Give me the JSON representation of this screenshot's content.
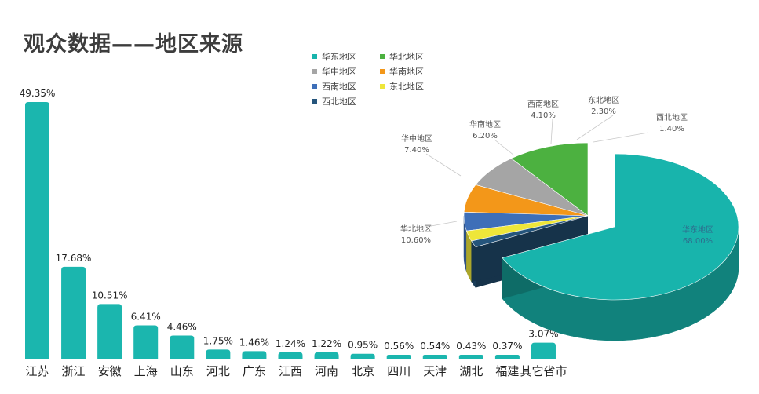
{
  "title": "观众数据——地区来源",
  "chart_data": [
    {
      "type": "bar",
      "categories": [
        "江苏",
        "浙江",
        "安徽",
        "上海",
        "山东",
        "河北",
        "广东",
        "江西",
        "河南",
        "北京",
        "四川",
        "天津",
        "湖北",
        "福建",
        "其它省市"
      ],
      "values": [
        49.35,
        17.68,
        10.51,
        6.41,
        4.46,
        1.75,
        1.46,
        1.24,
        1.22,
        0.95,
        0.56,
        0.54,
        0.43,
        0.37,
        3.07
      ],
      "data_labels": [
        "49.35%",
        "17.68%",
        "10.51%",
        "6.41%",
        "4.46%",
        "1.75%",
        "1.46%",
        "1.24%",
        "1.22%",
        "0.95%",
        "0.56%",
        "0.54%",
        "0.43%",
        "0.37%",
        "3.07%"
      ],
      "color": "#1bb6ae",
      "xlabel": "",
      "ylabel": "",
      "grid": false
    },
    {
      "type": "pie",
      "categories": [
        "华东地区",
        "华北地区",
        "华中地区",
        "华南地区",
        "西南地区",
        "东北地区",
        "西北地区"
      ],
      "values": [
        68.0,
        10.6,
        7.4,
        6.2,
        4.1,
        2.3,
        1.4
      ],
      "data_labels": [
        "68.00%",
        "10.60%",
        "7.40%",
        "6.20%",
        "4.10%",
        "2.30%",
        "1.40%"
      ],
      "colors": [
        "#18b4ac",
        "#4cb140",
        "#a5a5a5",
        "#f39719",
        "#3e6fb8",
        "#eee63a",
        "#25557c"
      ],
      "legend_placement": "top-left of pie"
    }
  ]
}
